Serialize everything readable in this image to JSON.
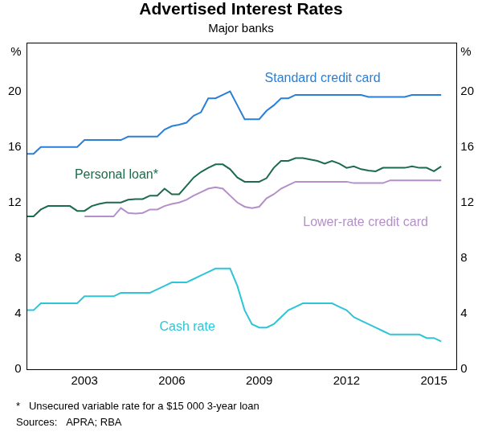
{
  "chart_data": {
    "type": "line",
    "title": "Advertised Interest Rates",
    "subtitle": "Major banks",
    "y_label": "%",
    "y2_label": "%",
    "notes": [
      "*   Unsecured variable rate for a $15 000 3-year loan",
      "Sources:   APRA; RBA"
    ],
    "x": [
      2001.5,
      2001.75,
      2002,
      2002.25,
      2002.5,
      2002.75,
      2003,
      2003.25,
      2003.5,
      2003.75,
      2004,
      2004.25,
      2004.5,
      2004.75,
      2005,
      2005.25,
      2005.5,
      2005.75,
      2006,
      2006.25,
      2006.5,
      2006.75,
      2007,
      2007.25,
      2007.5,
      2007.75,
      2008,
      2008.25,
      2008.5,
      2008.75,
      2009,
      2009.25,
      2009.5,
      2009.75,
      2010,
      2010.25,
      2010.5,
      2010.75,
      2011,
      2011.25,
      2011.5,
      2011.75,
      2012,
      2012.25,
      2012.5,
      2012.75,
      2013,
      2013.25,
      2013.5,
      2013.75,
      2014,
      2014.25,
      2014.5,
      2014.75,
      2015,
      2015.25,
      2015.5,
      2015.75
    ],
    "series": [
      {
        "name": "Standard credit card",
        "color": "#2a7fd6",
        "values": [
          15.5,
          15.5,
          16,
          16,
          16,
          16,
          16,
          16,
          16.5,
          16.5,
          16.5,
          16.5,
          16.5,
          16.5,
          16.75,
          16.75,
          16.75,
          16.75,
          16.75,
          17.25,
          17.5,
          17.6,
          17.75,
          18.25,
          18.5,
          19.5,
          19.5,
          19.75,
          20,
          19,
          18,
          18,
          18,
          18.6,
          19,
          19.5,
          19.5,
          19.75,
          19.75,
          19.75,
          19.75,
          19.75,
          19.75,
          19.75,
          19.75,
          19.75,
          19.75,
          19.6,
          19.6,
          19.6,
          19.6,
          19.6,
          19.6,
          19.75,
          19.75,
          19.75,
          19.75,
          19.75
        ]
      },
      {
        "name": "Personal loan*",
        "color": "#1c6b4c",
        "values": [
          11,
          11,
          11.5,
          11.75,
          11.75,
          11.75,
          11.75,
          11.4,
          11.4,
          11.75,
          11.9,
          12,
          12,
          12,
          12.2,
          12.25,
          12.25,
          12.5,
          12.5,
          13,
          12.6,
          12.6,
          13.2,
          13.8,
          14.2,
          14.5,
          14.75,
          14.75,
          14.4,
          13.8,
          13.5,
          13.5,
          13.5,
          13.75,
          14.5,
          15,
          15,
          15.2,
          15.2,
          15.1,
          15,
          14.8,
          15,
          14.8,
          14.5,
          14.6,
          14.4,
          14.3,
          14.25,
          14.5,
          14.5,
          14.5,
          14.5,
          14.6,
          14.5,
          14.5,
          14.25,
          14.6
        ]
      },
      {
        "name": "Lower-rate credit card",
        "color": "#b48fc8",
        "values": [
          null,
          null,
          null,
          null,
          null,
          null,
          null,
          null,
          11,
          11,
          11,
          11,
          11,
          11.6,
          11.25,
          11.2,
          11.25,
          11.5,
          11.5,
          11.75,
          11.9,
          12,
          12.2,
          12.5,
          12.75,
          13,
          13.1,
          13,
          12.5,
          12,
          11.7,
          11.6,
          11.7,
          12.3,
          12.6,
          13,
          13.25,
          13.5,
          13.5,
          13.5,
          13.5,
          13.5,
          13.5,
          13.5,
          13.5,
          13.4,
          13.4,
          13.4,
          13.4,
          13.4,
          13.6,
          13.6,
          13.6,
          13.6,
          13.6,
          13.6,
          13.6,
          13.6
        ]
      },
      {
        "name": "Cash rate",
        "color": "#2ec5d6",
        "values": [
          4.25,
          4.25,
          4.75,
          4.75,
          4.75,
          4.75,
          4.75,
          4.75,
          5.25,
          5.25,
          5.25,
          5.25,
          5.25,
          5.5,
          5.5,
          5.5,
          5.5,
          5.5,
          5.75,
          6,
          6.25,
          6.25,
          6.25,
          6.5,
          6.75,
          7,
          7.25,
          7.25,
          7.25,
          6,
          4.25,
          3.25,
          3,
          3,
          3.25,
          3.75,
          4.25,
          4.5,
          4.75,
          4.75,
          4.75,
          4.75,
          4.75,
          4.5,
          4.25,
          3.75,
          3.5,
          3.25,
          3,
          2.75,
          2.5,
          2.5,
          2.5,
          2.5,
          2.5,
          2.25,
          2.25,
          2
        ]
      }
    ],
    "xlim": [
      2001.5,
      2016.25
    ],
    "xticks": [
      {
        "value": 2003.5,
        "label": "2003"
      },
      {
        "value": 2006.5,
        "label": "2006"
      },
      {
        "value": 2009.5,
        "label": "2009"
      },
      {
        "value": 2012.5,
        "label": "2012"
      },
      {
        "value": 2015.5,
        "label": "2015"
      }
    ],
    "ylim": [
      0,
      23.5
    ],
    "yticks": [
      0,
      4,
      8,
      12,
      16,
      20
    ],
    "y2lim": [
      0,
      23.5
    ],
    "y2ticks": [
      0,
      4,
      8,
      12,
      16,
      20
    ],
    "grid": false
  }
}
